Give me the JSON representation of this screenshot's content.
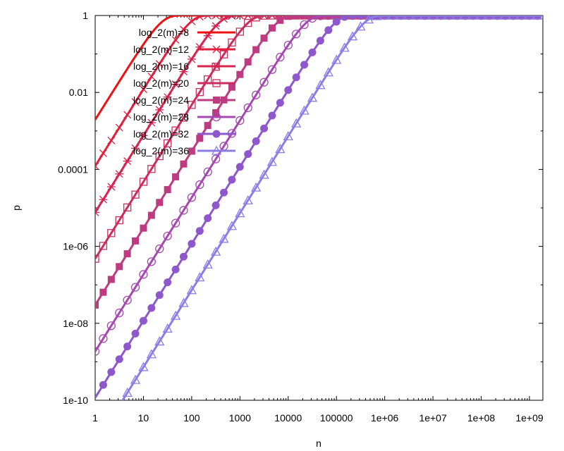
{
  "chart_data": {
    "type": "line",
    "title": "",
    "xlabel": "n",
    "ylabel": "p",
    "xscale": "log",
    "yscale": "log",
    "xlim": [
      1,
      2000000000
    ],
    "ylim": [
      1e-10,
      2
    ],
    "x_ticks": [
      {
        "value": 1,
        "label": "1"
      },
      {
        "value": 10,
        "label": "10"
      },
      {
        "value": 100,
        "label": "100"
      },
      {
        "value": 1000,
        "label": "1000"
      },
      {
        "value": 10000,
        "label": "10000"
      },
      {
        "value": 100000,
        "label": "100000"
      },
      {
        "value": 1000000,
        "label": "1e+06"
      },
      {
        "value": 10000000,
        "label": "1e+07"
      },
      {
        "value": 100000000,
        "label": "1e+08"
      },
      {
        "value": 1000000000,
        "label": "1e+09"
      }
    ],
    "y_ticks": [
      {
        "value": 1,
        "label": "1"
      },
      {
        "value": 0.01,
        "label": "0.01"
      },
      {
        "value": 0.0001,
        "label": "0.0001"
      },
      {
        "value": 1e-06,
        "label": "1e-06"
      },
      {
        "value": 1e-08,
        "label": "1e-08"
      },
      {
        "value": 1e-10,
        "label": "1e-10"
      }
    ],
    "legend_position": "top-left",
    "series": [
      {
        "name": "log_2(m)=8",
        "bits": 8,
        "color": "#ee1111",
        "marker": "none"
      },
      {
        "name": "log_2(m)=12",
        "bits": 12,
        "color": "#e01f3d",
        "marker": "x"
      },
      {
        "name": "log_2(m)=16",
        "bits": 16,
        "color": "#d4244f",
        "marker": "asterisk"
      },
      {
        "name": "log_2(m)=20",
        "bits": 20,
        "color": "#c92e5e",
        "marker": "open-square"
      },
      {
        "name": "log_2(m)=24",
        "bits": 24,
        "color": "#bd3b80",
        "marker": "filled-square"
      },
      {
        "name": "log_2(m)=28",
        "bits": 28,
        "color": "#a548b0",
        "marker": "open-circle"
      },
      {
        "name": "log_2(m)=32",
        "bits": 32,
        "color": "#8e57cc",
        "marker": "filled-circle"
      },
      {
        "name": "log_2(m)=36",
        "bits": 36,
        "color": "#8a7de6",
        "marker": "open-triangle"
      }
    ]
  }
}
